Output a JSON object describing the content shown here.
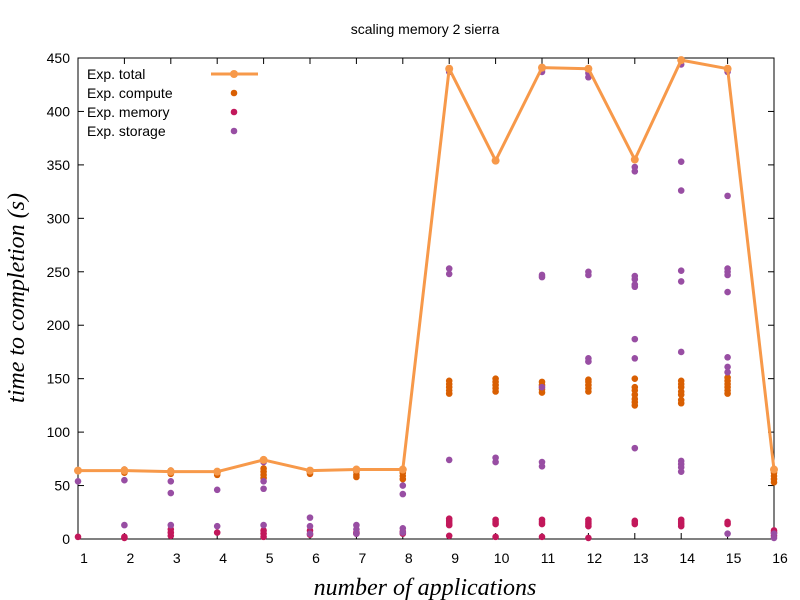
{
  "chart_data": {
    "type": "scatter",
    "title": "scaling memory 2 sierra",
    "xlabel": "number of applications",
    "ylabel": "time to completion (s)",
    "xlim": [
      1,
      16
    ],
    "ylim": [
      0,
      450
    ],
    "x_ticks": [
      1,
      2,
      3,
      4,
      5,
      6,
      7,
      8,
      9,
      10,
      11,
      12,
      13,
      14,
      15,
      16
    ],
    "y_ticks": [
      0,
      50,
      100,
      150,
      200,
      250,
      300,
      350,
      400,
      450
    ],
    "grid": false,
    "legend_position": "top-left",
    "series": [
      {
        "name": "Exp. total",
        "color": "#f7994a",
        "style": "line+points",
        "points": [
          [
            1,
            64
          ],
          [
            2,
            64
          ],
          [
            3,
            63
          ],
          [
            4,
            63
          ],
          [
            5,
            74
          ],
          [
            6,
            64
          ],
          [
            7,
            65
          ],
          [
            8,
            65
          ],
          [
            9,
            440
          ],
          [
            10,
            354
          ],
          [
            11,
            441
          ],
          [
            12,
            440
          ],
          [
            13,
            355
          ],
          [
            14,
            448
          ],
          [
            15,
            440
          ],
          [
            16,
            65
          ]
        ]
      },
      {
        "name": "Exp. compute",
        "color": "#d95f02",
        "style": "points",
        "points": [
          [
            1,
            64
          ],
          [
            2,
            62
          ],
          [
            2,
            65
          ],
          [
            3,
            61
          ],
          [
            3,
            64
          ],
          [
            4,
            60
          ],
          [
            4,
            62
          ],
          [
            5,
            57
          ],
          [
            5,
            60
          ],
          [
            5,
            63
          ],
          [
            5,
            66
          ],
          [
            6,
            61
          ],
          [
            6,
            64
          ],
          [
            7,
            58
          ],
          [
            7,
            60
          ],
          [
            7,
            63
          ],
          [
            7,
            65
          ],
          [
            8,
            56
          ],
          [
            8,
            59
          ],
          [
            8,
            62
          ],
          [
            8,
            65
          ],
          [
            9,
            136
          ],
          [
            9,
            139
          ],
          [
            9,
            142
          ],
          [
            9,
            145
          ],
          [
            9,
            148
          ],
          [
            10,
            138
          ],
          [
            10,
            141
          ],
          [
            10,
            144
          ],
          [
            10,
            147
          ],
          [
            10,
            150
          ],
          [
            11,
            137
          ],
          [
            11,
            140
          ],
          [
            11,
            144
          ],
          [
            11,
            147
          ],
          [
            12,
            138
          ],
          [
            12,
            141
          ],
          [
            12,
            144
          ],
          [
            12,
            147
          ],
          [
            12,
            149
          ],
          [
            13,
            125
          ],
          [
            13,
            128
          ],
          [
            13,
            131
          ],
          [
            13,
            135
          ],
          [
            13,
            139
          ],
          [
            13,
            142
          ],
          [
            13,
            150
          ],
          [
            14,
            127
          ],
          [
            14,
            130
          ],
          [
            14,
            135
          ],
          [
            14,
            138
          ],
          [
            14,
            142
          ],
          [
            14,
            145
          ],
          [
            14,
            148
          ],
          [
            15,
            136
          ],
          [
            15,
            139
          ],
          [
            15,
            142
          ],
          [
            15,
            145
          ],
          [
            15,
            148
          ],
          [
            15,
            151
          ],
          [
            16,
            53
          ],
          [
            16,
            56
          ],
          [
            16,
            59
          ],
          [
            16,
            62
          ],
          [
            16,
            65
          ]
        ]
      },
      {
        "name": "Exp. memory",
        "color": "#c2185b",
        "style": "points",
        "points": [
          [
            1,
            2
          ],
          [
            2,
            1
          ],
          [
            2,
            2
          ],
          [
            3,
            3
          ],
          [
            3,
            6
          ],
          [
            3,
            9
          ],
          [
            4,
            6
          ],
          [
            5,
            2
          ],
          [
            5,
            5
          ],
          [
            5,
            8
          ],
          [
            6,
            4
          ],
          [
            6,
            8
          ],
          [
            7,
            5
          ],
          [
            7,
            6
          ],
          [
            8,
            5
          ],
          [
            8,
            7
          ],
          [
            9,
            13
          ],
          [
            9,
            15
          ],
          [
            9,
            17
          ],
          [
            9,
            19
          ],
          [
            9,
            3
          ],
          [
            10,
            2
          ],
          [
            10,
            14
          ],
          [
            10,
            16
          ],
          [
            10,
            18
          ],
          [
            11,
            2
          ],
          [
            11,
            14
          ],
          [
            11,
            16
          ],
          [
            11,
            18
          ],
          [
            12,
            1
          ],
          [
            12,
            12
          ],
          [
            12,
            14
          ],
          [
            12,
            16
          ],
          [
            12,
            18
          ],
          [
            13,
            14
          ],
          [
            13,
            16
          ],
          [
            13,
            17
          ],
          [
            14,
            12
          ],
          [
            14,
            14
          ],
          [
            14,
            16
          ],
          [
            14,
            18
          ],
          [
            15,
            14
          ],
          [
            15,
            16
          ],
          [
            16,
            3
          ],
          [
            16,
            6
          ],
          [
            16,
            8
          ]
        ]
      },
      {
        "name": "Exp. storage",
        "color": "#984ea3",
        "style": "points",
        "points": [
          [
            1,
            54
          ],
          [
            2,
            55
          ],
          [
            2,
            13
          ],
          [
            3,
            54
          ],
          [
            3,
            43
          ],
          [
            3,
            13
          ],
          [
            4,
            46
          ],
          [
            4,
            12
          ],
          [
            5,
            72
          ],
          [
            5,
            54
          ],
          [
            5,
            47
          ],
          [
            5,
            13
          ],
          [
            6,
            20
          ],
          [
            6,
            12
          ],
          [
            6,
            5
          ],
          [
            7,
            13
          ],
          [
            7,
            9
          ],
          [
            7,
            5
          ],
          [
            8,
            50
          ],
          [
            8,
            42
          ],
          [
            8,
            10
          ],
          [
            8,
            6
          ],
          [
            9,
            437
          ],
          [
            9,
            253
          ],
          [
            9,
            248
          ],
          [
            9,
            74
          ],
          [
            10,
            354
          ],
          [
            10,
            76
          ],
          [
            10,
            72
          ],
          [
            11,
            439
          ],
          [
            11,
            437
          ],
          [
            11,
            247
          ],
          [
            11,
            245
          ],
          [
            11,
            142
          ],
          [
            11,
            72
          ],
          [
            11,
            68
          ],
          [
            12,
            436
          ],
          [
            12,
            432
          ],
          [
            12,
            250
          ],
          [
            12,
            247
          ],
          [
            12,
            169
          ],
          [
            12,
            166
          ],
          [
            13,
            348
          ],
          [
            13,
            344
          ],
          [
            13,
            246
          ],
          [
            13,
            243
          ],
          [
            13,
            238
          ],
          [
            13,
            236
          ],
          [
            13,
            187
          ],
          [
            13,
            169
          ],
          [
            13,
            85
          ],
          [
            14,
            444
          ],
          [
            14,
            353
          ],
          [
            14,
            326
          ],
          [
            14,
            251
          ],
          [
            14,
            241
          ],
          [
            14,
            175
          ],
          [
            14,
            73
          ],
          [
            14,
            70
          ],
          [
            14,
            67
          ],
          [
            14,
            63
          ],
          [
            15,
            437
          ],
          [
            15,
            321
          ],
          [
            15,
            253
          ],
          [
            15,
            250
          ],
          [
            15,
            247
          ],
          [
            15,
            231
          ],
          [
            15,
            170
          ],
          [
            15,
            161
          ],
          [
            15,
            156
          ],
          [
            15,
            5
          ],
          [
            16,
            5
          ],
          [
            16,
            1
          ]
        ]
      }
    ]
  }
}
